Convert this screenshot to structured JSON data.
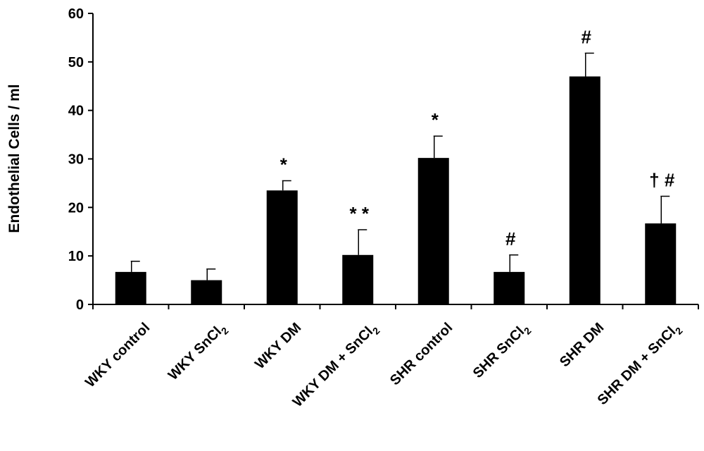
{
  "chart_data": {
    "type": "bar",
    "title": "",
    "xlabel": "",
    "ylabel": "Endothelial Cells / ml",
    "ylim": [
      0,
      60
    ],
    "yticks": [
      0,
      10,
      20,
      30,
      40,
      50,
      60
    ],
    "grid": false,
    "legend": "none",
    "bar_color": "#000000",
    "categories": [
      {
        "label": "WKY control",
        "main": "WKY control",
        "sub": ""
      },
      {
        "label": "WKY SnCl2",
        "main": "WKY SnCl",
        "sub": "2"
      },
      {
        "label": "WKY DM",
        "main": "WKY DM",
        "sub": ""
      },
      {
        "label": "WKY DM + SnCl2",
        "main": "WKY DM + SnCl",
        "sub": "2"
      },
      {
        "label": "SHR control",
        "main": "SHR control",
        "sub": ""
      },
      {
        "label": "SHR SnCl2",
        "main": "SHR SnCl",
        "sub": "2"
      },
      {
        "label": "SHR DM",
        "main": "SHR DM",
        "sub": ""
      },
      {
        "label": "SHR DM + SnCl2",
        "main": "SHR DM + SnCl",
        "sub": "2"
      }
    ],
    "values": [
      6.7,
      5.0,
      23.5,
      10.2,
      30.2,
      6.7,
      47.0,
      16.7
    ],
    "errors": [
      2.2,
      2.3,
      2.0,
      5.2,
      4.5,
      3.5,
      4.8,
      5.6
    ],
    "annotations": [
      "",
      "",
      "*",
      "* *",
      "*",
      "#",
      "#",
      "† #"
    ]
  }
}
